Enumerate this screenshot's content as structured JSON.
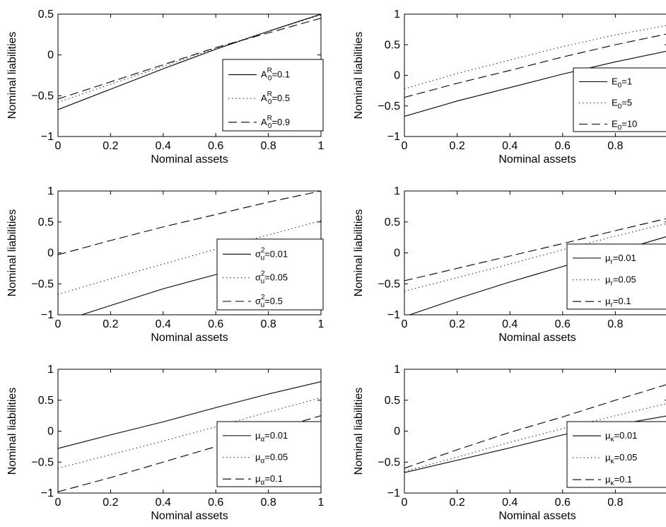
{
  "chart_data": [
    {
      "type": "line",
      "xlabel": "Nominal assets",
      "ylabel": "Nominal liabilities",
      "xlim": [
        0,
        1
      ],
      "ylim": [
        -1,
        0.5
      ],
      "xticks": [
        "0",
        "0.2",
        "0.4",
        "0.6",
        "0.8",
        "1"
      ],
      "yticks": [
        "-1",
        "-0.5",
        "0",
        "0.5"
      ],
      "legend_position": "bottom-right",
      "series": [
        {
          "legend_main": "A",
          "legend_sub": "0",
          "legend_sup": "R",
          "legend_rest": "=0.1",
          "style": "solid",
          "x": [
            0,
            0.2,
            0.4,
            0.6,
            0.8,
            1
          ],
          "y": [
            -0.67,
            -0.42,
            -0.17,
            0.07,
            0.29,
            0.5
          ]
        },
        {
          "legend_main": "A",
          "legend_sub": "0",
          "legend_sup": "R",
          "legend_rest": "=0.5",
          "style": "dotted",
          "x": [
            0,
            0.2,
            0.4,
            0.6,
            0.8,
            1
          ],
          "y": [
            -0.58,
            -0.36,
            -0.14,
            0.08,
            0.29,
            0.49
          ]
        },
        {
          "legend_main": "A",
          "legend_sub": "0",
          "legend_sup": "R",
          "legend_rest": "=0.9",
          "style": "dashed",
          "x": [
            0,
            0.2,
            0.4,
            0.6,
            0.8,
            1
          ],
          "y": [
            -0.54,
            -0.33,
            -0.12,
            0.09,
            0.27,
            0.45
          ]
        }
      ]
    },
    {
      "type": "line",
      "xlabel": "Nominal assets",
      "ylabel": "Nominal liabilities",
      "xlim": [
        0,
        1
      ],
      "ylim": [
        -1,
        1
      ],
      "xticks": [
        "0",
        "0.2",
        "0.4",
        "0.6",
        "0.8"
      ],
      "yticks": [
        "-1",
        "-0.5",
        "0",
        "0.5",
        "1"
      ],
      "legend_position": "bottom-right",
      "series": [
        {
          "legend_main": "E",
          "legend_sub": "0",
          "legend_sup": "",
          "legend_rest": "=1",
          "style": "solid",
          "x": [
            0,
            0.2,
            0.4,
            0.6,
            0.8,
            1
          ],
          "y": [
            -0.67,
            -0.42,
            -0.2,
            0.02,
            0.22,
            0.4
          ]
        },
        {
          "legend_main": "E",
          "legend_sub": "0",
          "legend_sup": "",
          "legend_rest": "=5",
          "style": "dotted",
          "x": [
            0,
            0.2,
            0.4,
            0.6,
            0.8,
            1
          ],
          "y": [
            -0.22,
            0.03,
            0.25,
            0.47,
            0.66,
            0.82
          ]
        },
        {
          "legend_main": "E",
          "legend_sub": "0",
          "legend_sup": "",
          "legend_rest": "=10",
          "style": "dashed",
          "x": [
            0,
            0.2,
            0.4,
            0.6,
            0.8,
            1
          ],
          "y": [
            -0.36,
            -0.13,
            0.08,
            0.3,
            0.5,
            0.68
          ]
        }
      ]
    },
    {
      "type": "line",
      "xlabel": "Nominal assets",
      "ylabel": "Nominal liabilities",
      "xlim": [
        0,
        1
      ],
      "ylim": [
        -1,
        1
      ],
      "xticks": [
        "0",
        "0.2",
        "0.4",
        "0.6",
        "0.8",
        "1"
      ],
      "yticks": [
        "-1",
        "-0.5",
        "0",
        "0.5",
        "1"
      ],
      "legend_position": "bottom-right",
      "series": [
        {
          "legend_main": "σ",
          "legend_sub": "u",
          "legend_sup": "2",
          "legend_rest": "=0.01",
          "style": "solid",
          "x": [
            0.09,
            0.2,
            0.4,
            0.6,
            0.8,
            1
          ],
          "y": [
            -1,
            -0.85,
            -0.58,
            -0.35,
            -0.13,
            0.07
          ]
        },
        {
          "legend_main": "σ",
          "legend_sub": "u",
          "legend_sup": "2",
          "legend_rest": "=0.05",
          "style": "dotted",
          "x": [
            0,
            0.2,
            0.4,
            0.6,
            0.8,
            1
          ],
          "y": [
            -0.67,
            -0.42,
            -0.18,
            0.06,
            0.29,
            0.52
          ]
        },
        {
          "legend_main": "σ",
          "legend_sub": "u",
          "legend_sup": "2",
          "legend_rest": "=0.5",
          "style": "dashed",
          "x": [
            0,
            0.2,
            0.4,
            0.6,
            0.8,
            1
          ],
          "y": [
            -0.03,
            0.2,
            0.42,
            0.62,
            0.82,
            1.0
          ]
        }
      ]
    },
    {
      "type": "line",
      "xlabel": "Nominal assets",
      "ylabel": "Nominal liabilities",
      "xlim": [
        0,
        1
      ],
      "ylim": [
        -1,
        1
      ],
      "xticks": [
        "0",
        "0.2",
        "0.4",
        "0.6",
        "0.8"
      ],
      "yticks": [
        "-1",
        "-0.5",
        "0",
        "0.5",
        "1"
      ],
      "legend_position": "bottom-right",
      "series": [
        {
          "legend_main": "μ",
          "legend_sub": "r",
          "legend_sup": "",
          "legend_rest": "=0.01",
          "style": "solid",
          "x": [
            0.02,
            0.2,
            0.4,
            0.6,
            0.8,
            1
          ],
          "y": [
            -1,
            -0.74,
            -0.47,
            -0.22,
            0.02,
            0.27
          ]
        },
        {
          "legend_main": "μ",
          "legend_sub": "r",
          "legend_sup": "",
          "legend_rest": "=0.05",
          "style": "dotted",
          "x": [
            0,
            0.2,
            0.4,
            0.6,
            0.8,
            1
          ],
          "y": [
            -0.62,
            -0.4,
            -0.18,
            0.05,
            0.27,
            0.48
          ]
        },
        {
          "legend_main": "μ",
          "legend_sub": "r",
          "legend_sup": "",
          "legend_rest": "=0.1",
          "style": "dashed",
          "x": [
            0,
            0.2,
            0.4,
            0.6,
            0.8,
            1
          ],
          "y": [
            -0.45,
            -0.25,
            -0.05,
            0.15,
            0.36,
            0.56
          ]
        }
      ]
    },
    {
      "type": "line",
      "xlabel": "Nominal assets",
      "ylabel": "Nominal liabilities",
      "xlim": [
        0,
        1
      ],
      "ylim": [
        -1,
        1
      ],
      "xticks": [
        "0",
        "0.2",
        "0.4",
        "0.6",
        "0.8",
        "1"
      ],
      "yticks": [
        "-1",
        "-0.5",
        "0",
        "0.5",
        "1"
      ],
      "legend_position": "bottom-right",
      "series": [
        {
          "legend_main": "μ",
          "legend_sub": "α",
          "legend_sup": "",
          "legend_rest": "=0.01",
          "style": "solid",
          "x": [
            0,
            0.2,
            0.4,
            0.6,
            0.8,
            1
          ],
          "y": [
            -0.28,
            -0.06,
            0.15,
            0.38,
            0.6,
            0.8
          ]
        },
        {
          "legend_main": "μ",
          "legend_sub": "α",
          "legend_sup": "",
          "legend_rest": "=0.05",
          "style": "dotted",
          "x": [
            0,
            0.2,
            0.4,
            0.6,
            0.8,
            1
          ],
          "y": [
            -0.6,
            -0.38,
            -0.16,
            0.07,
            0.31,
            0.54
          ]
        },
        {
          "legend_main": "μ",
          "legend_sub": "α",
          "legend_sup": "",
          "legend_rest": "=0.1",
          "style": "dashed",
          "x": [
            0,
            0.2,
            0.4,
            0.6,
            0.8,
            1
          ],
          "y": [
            -0.98,
            -0.75,
            -0.5,
            -0.25,
            0.0,
            0.25
          ]
        }
      ]
    },
    {
      "type": "line",
      "xlabel": "Nominal assets",
      "ylabel": "Nominal liabilities",
      "xlim": [
        0,
        1
      ],
      "ylim": [
        -1,
        1
      ],
      "xticks": [
        "0",
        "0.2",
        "0.4",
        "0.6",
        "0.8"
      ],
      "yticks": [
        "-1",
        "-0.5",
        "0",
        "0.5",
        "1"
      ],
      "legend_position": "bottom-right",
      "series": [
        {
          "legend_main": "μ",
          "legend_sub": "κ",
          "legend_sup": "",
          "legend_rest": "=0.01",
          "style": "solid",
          "x": [
            0,
            0.2,
            0.4,
            0.6,
            0.8,
            1
          ],
          "y": [
            -0.67,
            -0.47,
            -0.27,
            -0.06,
            0.1,
            0.25
          ]
        },
        {
          "legend_main": "μ",
          "legend_sub": "κ",
          "legend_sup": "",
          "legend_rest": "=0.05",
          "style": "dotted",
          "x": [
            0,
            0.2,
            0.4,
            0.6,
            0.8,
            1
          ],
          "y": [
            -0.65,
            -0.42,
            -0.18,
            0.04,
            0.25,
            0.45
          ]
        },
        {
          "legend_main": "μ",
          "legend_sub": "κ",
          "legend_sup": "",
          "legend_rest": "=0.1",
          "style": "dashed",
          "x": [
            0,
            0.2,
            0.4,
            0.6,
            0.8,
            1
          ],
          "y": [
            -0.6,
            -0.3,
            -0.02,
            0.23,
            0.5,
            0.76
          ]
        }
      ]
    }
  ]
}
